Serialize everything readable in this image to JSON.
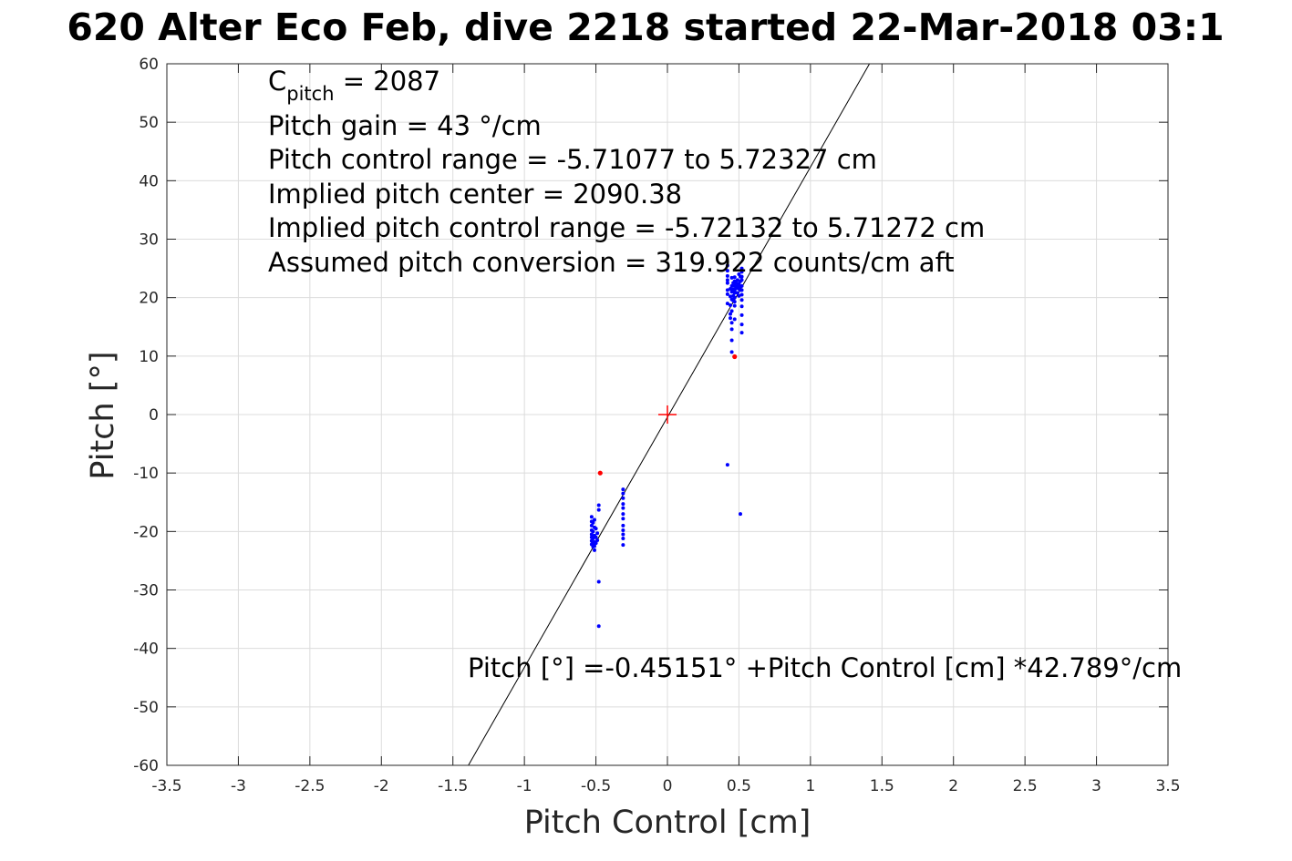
{
  "chart_data": {
    "type": "scatter",
    "title": "620 Alter Eco Feb, dive 2218 started 22-Mar-2018 03:1",
    "xlabel": "Pitch Control [cm]",
    "ylabel": "Pitch [°]",
    "xlim": [
      -3.5,
      3.5
    ],
    "ylim": [
      -60,
      60
    ],
    "xticks": [
      -3.5,
      -3,
      -2.5,
      -2,
      -1.5,
      -1,
      -0.5,
      0,
      0.5,
      1,
      1.5,
      2,
      2.5,
      3,
      3.5
    ],
    "xtick_labels": [
      "-3.5",
      "-3",
      "-2.5",
      "-2",
      "-1.5",
      "-1",
      "-0.5",
      "0",
      "0.5",
      "1",
      "1.5",
      "2",
      "2.5",
      "3",
      "3.5"
    ],
    "yticks": [
      -60,
      -50,
      -40,
      -30,
      -20,
      -10,
      0,
      10,
      20,
      30,
      40,
      50,
      60
    ],
    "ytick_labels": [
      "-60",
      "-50",
      "-40",
      "-30",
      "-20",
      "-10",
      "0",
      "10",
      "20",
      "30",
      "40",
      "50",
      "60"
    ],
    "grid": true,
    "annotations": {
      "c_pitch_label": "C",
      "c_pitch_sub": "pitch",
      "c_pitch_value": " = 2087",
      "lines": [
        "Pitch gain = 43 °/cm",
        "Pitch control range = -5.71077 to 5.72327 cm",
        "Implied pitch center = 2090.38",
        "Implied pitch control range = -5.72132 to 5.71272 cm",
        "Assumed pitch conversion = 319.922 counts/cm aft"
      ],
      "fit_equation": "Pitch [°] =-0.45151° +Pitch Control [cm] *42.789°/cm"
    },
    "fit_line": {
      "intercept": -0.45151,
      "slope": 42.789,
      "color": "#000000"
    },
    "center_marker": {
      "x": 0,
      "y": 0,
      "color": "#ff0000"
    },
    "series": [
      {
        "color": "#0000ff",
        "points": [
          [
            0.42,
            25.5
          ],
          [
            0.42,
            24.6
          ],
          [
            0.42,
            23.7
          ],
          [
            0.42,
            23.0
          ],
          [
            0.42,
            22.5
          ],
          [
            0.42,
            21.3
          ],
          [
            0.42,
            20.6
          ],
          [
            0.42,
            19.0
          ],
          [
            0.44,
            21.5
          ],
          [
            0.44,
            20.2
          ],
          [
            0.44,
            18.7
          ],
          [
            0.44,
            17.2
          ],
          [
            0.44,
            16.5
          ],
          [
            0.45,
            23.4
          ],
          [
            0.45,
            22.0
          ],
          [
            0.45,
            21.0
          ],
          [
            0.45,
            19.7
          ],
          [
            0.45,
            17.7
          ],
          [
            0.45,
            15.7
          ],
          [
            0.45,
            14.6
          ],
          [
            0.45,
            12.7
          ],
          [
            0.45,
            10.7
          ],
          [
            0.46,
            22.5
          ],
          [
            0.46,
            21.4
          ],
          [
            0.46,
            20.3
          ],
          [
            0.46,
            19.5
          ],
          [
            0.47,
            23.5
          ],
          [
            0.47,
            22.8
          ],
          [
            0.47,
            22.0
          ],
          [
            0.47,
            21.2
          ],
          [
            0.47,
            20.8
          ],
          [
            0.47,
            20.0
          ],
          [
            0.47,
            19.3
          ],
          [
            0.47,
            18.6
          ],
          [
            0.47,
            16.3
          ],
          [
            0.48,
            22.5
          ],
          [
            0.48,
            21.6
          ],
          [
            0.49,
            23.0
          ],
          [
            0.49,
            22.0
          ],
          [
            0.49,
            20.8
          ],
          [
            0.5,
            24.0
          ],
          [
            0.5,
            22.4
          ],
          [
            0.5,
            21.5
          ],
          [
            0.5,
            20.3
          ],
          [
            0.51,
            23.6
          ],
          [
            0.51,
            22.8
          ],
          [
            0.51,
            21.9
          ],
          [
            0.51,
            21.3
          ],
          [
            0.52,
            25.0
          ],
          [
            0.52,
            24.4
          ],
          [
            0.52,
            23.6
          ],
          [
            0.52,
            23.0
          ],
          [
            0.52,
            22.0
          ],
          [
            0.52,
            21.3
          ],
          [
            0.52,
            20.5
          ],
          [
            0.52,
            19.6
          ],
          [
            0.52,
            18.5
          ],
          [
            0.52,
            17.0
          ],
          [
            0.52,
            15.4
          ],
          [
            0.52,
            14.0
          ],
          [
            0.42,
            -8.6
          ],
          [
            0.51,
            -17.0
          ],
          [
            -0.53,
            -17.5
          ],
          [
            -0.53,
            -18.3
          ],
          [
            -0.53,
            -19.0
          ],
          [
            -0.53,
            -19.8
          ],
          [
            -0.53,
            -20.5
          ],
          [
            -0.53,
            -21.0
          ],
          [
            -0.53,
            -21.6
          ],
          [
            -0.53,
            -22.2
          ],
          [
            -0.52,
            -18.5
          ],
          [
            -0.52,
            -20.0
          ],
          [
            -0.52,
            -21.2
          ],
          [
            -0.52,
            -22.0
          ],
          [
            -0.52,
            -22.6
          ],
          [
            -0.51,
            -18.0
          ],
          [
            -0.51,
            -19.3
          ],
          [
            -0.51,
            -20.7
          ],
          [
            -0.51,
            -21.8
          ],
          [
            -0.51,
            -22.5
          ],
          [
            -0.51,
            -23.2
          ],
          [
            -0.5,
            -19.5
          ],
          [
            -0.5,
            -21.0
          ],
          [
            -0.5,
            -22.0
          ],
          [
            -0.49,
            -20.3
          ],
          [
            -0.49,
            -21.5
          ],
          [
            -0.48,
            -15.5
          ],
          [
            -0.48,
            -16.3
          ],
          [
            -0.48,
            -28.6
          ],
          [
            -0.48,
            -36.2
          ],
          [
            -0.31,
            -12.8
          ],
          [
            -0.31,
            -13.5
          ],
          [
            -0.31,
            -14.3
          ],
          [
            -0.31,
            -15.3
          ],
          [
            -0.31,
            -16.0
          ],
          [
            -0.31,
            -17.0
          ],
          [
            -0.31,
            -17.8
          ],
          [
            -0.31,
            -19.0
          ],
          [
            -0.31,
            -19.8
          ],
          [
            -0.31,
            -20.5
          ],
          [
            -0.31,
            -21.2
          ],
          [
            -0.31,
            -22.3
          ]
        ]
      },
      {
        "color": "#ff0000",
        "points": [
          [
            -0.47,
            -10.0
          ],
          [
            0.47,
            9.9
          ]
        ]
      }
    ]
  }
}
